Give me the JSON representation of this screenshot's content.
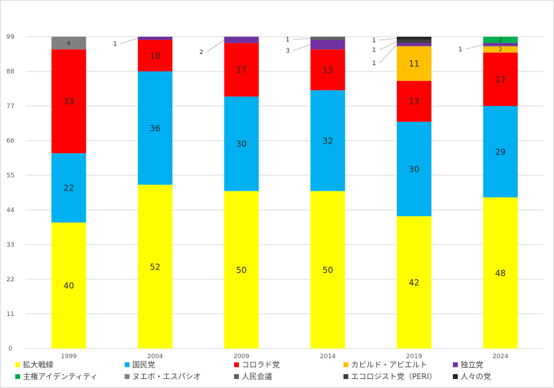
{
  "chart_data": {
    "type": "bar",
    "stacked": true,
    "categories": [
      "1999",
      "2004",
      "2009",
      "2014",
      "2019",
      "2024"
    ],
    "ylim": [
      0,
      99
    ],
    "yticks": [
      0,
      11,
      22,
      33,
      44,
      55,
      66,
      77,
      88,
      99
    ],
    "grid": true,
    "legend_position": "bottom",
    "series": [
      {
        "name": "拡大戦線",
        "color": "#FFFF00",
        "values": [
          40,
          52,
          50,
          50,
          42,
          48
        ]
      },
      {
        "name": "国民党",
        "color": "#00B0F0",
        "values": [
          22,
          36,
          30,
          32,
          30,
          29
        ]
      },
      {
        "name": "コロラド党",
        "color": "#FF0000",
        "values": [
          33,
          10,
          17,
          13,
          13,
          17
        ]
      },
      {
        "name": "カビルド・アビエルト",
        "color": "#FFC000",
        "values": [
          0,
          0,
          0,
          0,
          11,
          2
        ]
      },
      {
        "name": "独立党",
        "color": "#7030A0",
        "values": [
          0,
          1,
          2,
          3,
          1,
          1
        ]
      },
      {
        "name": "主権アイデンティティ",
        "color": "#00B050",
        "values": [
          0,
          0,
          0,
          0,
          0,
          2
        ]
      },
      {
        "name": "ヌエボ・エスパシオ",
        "color": "#808080",
        "values": [
          4,
          0,
          0,
          0,
          0,
          0
        ]
      },
      {
        "name": "人民会議",
        "color": "#5F5F5F",
        "values": [
          0,
          0,
          0,
          1,
          0,
          0
        ]
      },
      {
        "name": "エコロジスト党（PERI）",
        "color": "#404040",
        "values": [
          0,
          0,
          0,
          0,
          1,
          0
        ]
      },
      {
        "name": "人々の党",
        "color": "#262626",
        "values": [
          0,
          0,
          0,
          0,
          1,
          0
        ]
      }
    ],
    "outside_labels": [
      {
        "category": "2004",
        "series": "独立党",
        "text": "1"
      },
      {
        "category": "2009",
        "series": "独立党",
        "text": "2"
      },
      {
        "category": "2014",
        "series": "人民会議",
        "text": "1"
      },
      {
        "category": "2014",
        "series": "独立党",
        "text": "3"
      },
      {
        "category": "2019",
        "series": "人々の党",
        "text": "1"
      },
      {
        "category": "2019",
        "series": "エコロジスト党（PERI）",
        "text": "1"
      },
      {
        "category": "2019",
        "series": "独立党",
        "text": "1"
      },
      {
        "category": "2024",
        "series": "独立党",
        "text": "1"
      }
    ]
  }
}
